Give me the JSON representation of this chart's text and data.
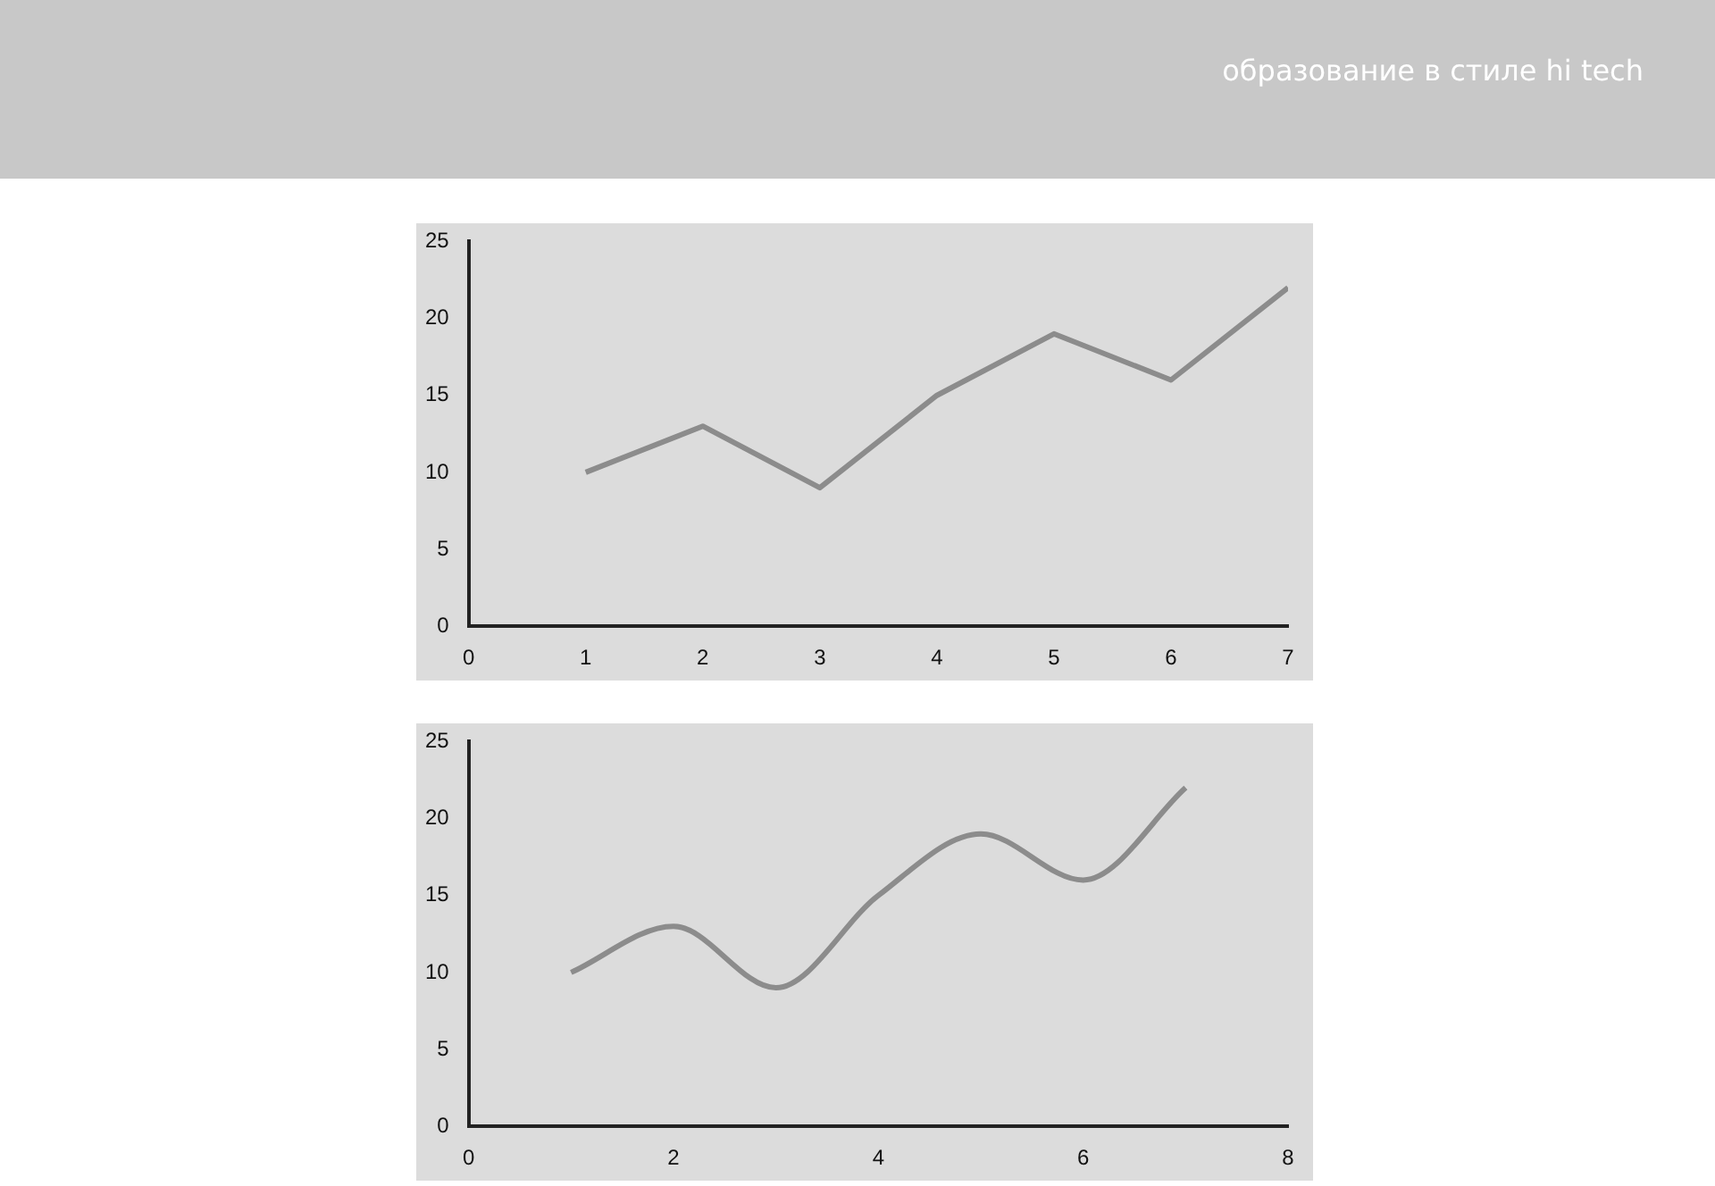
{
  "chart_data": [
    {
      "type": "line",
      "annotations": [
        "образование в стиле hi tech"
      ],
      "x": [
        1,
        2,
        3,
        4,
        5,
        6,
        7
      ],
      "values": [
        10,
        13,
        9,
        15,
        19,
        16,
        22
      ],
      "color": "#8c8c8c",
      "xlim": [
        0,
        7
      ],
      "xticks": [
        0,
        1,
        2,
        3,
        4,
        5,
        6,
        7
      ],
      "ylim": [
        0,
        25
      ],
      "yticks": [
        0,
        5,
        10,
        15,
        20,
        25
      ],
      "grid": false,
      "legend": false,
      "marker": "none"
    },
    {
      "type": "line",
      "x": [
        1,
        2,
        3,
        4,
        5,
        6,
        7
      ],
      "values": [
        10,
        13,
        9,
        15,
        19,
        16,
        22
      ],
      "color": "#8c8c8c",
      "xlim": [
        0,
        8
      ],
      "xticks": [
        0,
        2,
        4,
        6,
        8
      ],
      "ylim": [
        0,
        25
      ],
      "yticks": [
        0,
        5,
        10,
        15,
        20,
        25
      ],
      "grid": false,
      "legend": false,
      "marker": "none"
    }
  ]
}
